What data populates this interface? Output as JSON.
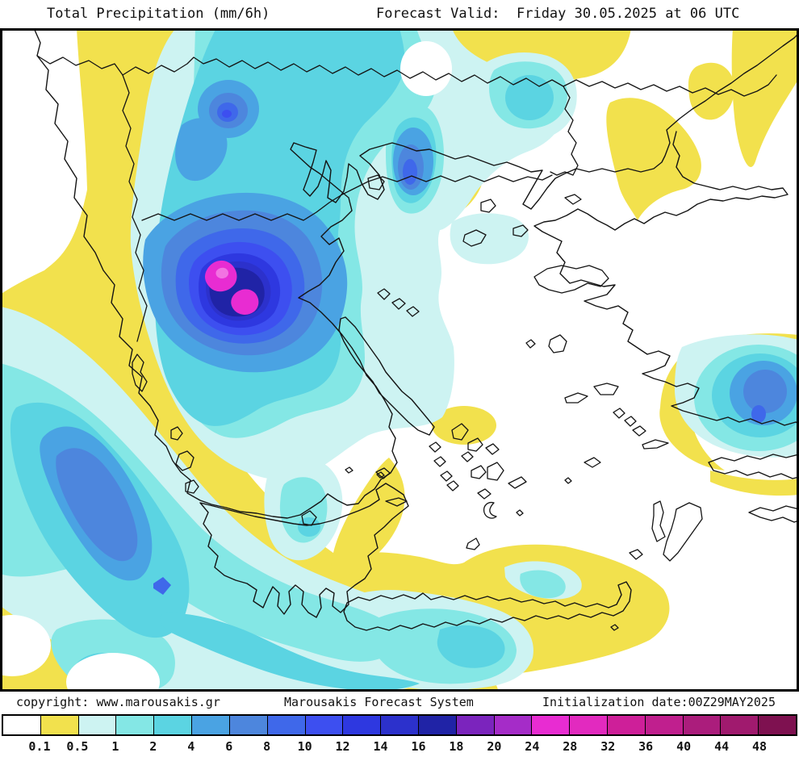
{
  "header": {
    "title": "Total Precipitation (mm/6h)",
    "forecast_valid": "Forecast Valid:  Friday 30.05.2025 at 06 UTC"
  },
  "footer": {
    "copyright": "copyright: www.marousakis.gr",
    "system_name": "Marousakis Forecast System",
    "initialization": "Initialization date:00Z29MAY2025"
  },
  "legend": {
    "units": "mm/6h",
    "tick_labels": [
      "0.1",
      "0.5",
      "1",
      "2",
      "4",
      "6",
      "8",
      "10",
      "12",
      "14",
      "16",
      "18",
      "20",
      "24",
      "28",
      "32",
      "36",
      "40",
      "44",
      "48"
    ],
    "colors": [
      "#ffffff",
      "#f2e14d",
      "#cdf3f2",
      "#84e7e5",
      "#5bd4e2",
      "#4aa3e3",
      "#4d86dd",
      "#3f68ea",
      "#3d4ff0",
      "#2e38e0",
      "#2c31cc",
      "#2023a6",
      "#7b24bd",
      "#a52cc8",
      "#e82cd2",
      "#e22abf",
      "#ce1f99",
      "#c01f8e",
      "#ab1d7c",
      "#a01a6e",
      "#7e1150"
    ]
  }
}
